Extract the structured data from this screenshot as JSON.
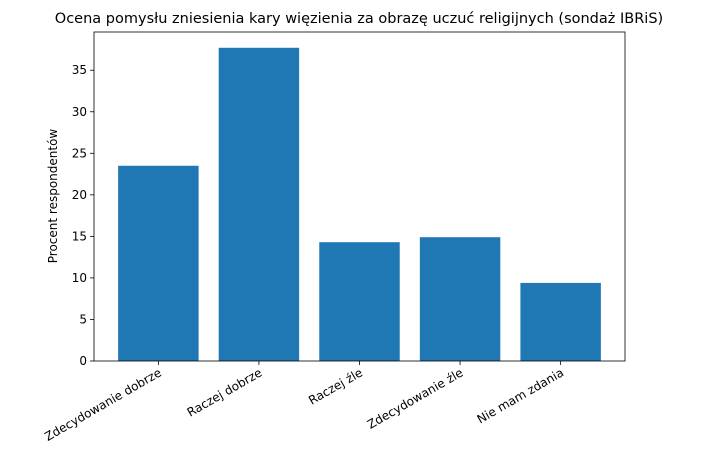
{
  "chart_data": {
    "type": "bar",
    "title": "Ocena pomysłu zniesienia kary więzienia za obrazę uczuć religijnych (sondaż IBRiS)",
    "y_label": "Procent respondentów",
    "categories": [
      "Zdecydowanie dobrze",
      "Raczej dobrze",
      "Raczej źle",
      "Zdecydowanie źle",
      "Nie mam zdania"
    ],
    "values": [
      23.5,
      37.7,
      14.3,
      14.9,
      9.4
    ],
    "color": "#1f77b4",
    "ylim": [
      0,
      39.6
    ],
    "yticks": [
      0,
      5,
      10,
      15,
      20,
      25,
      30,
      35
    ],
    "grid": false
  }
}
